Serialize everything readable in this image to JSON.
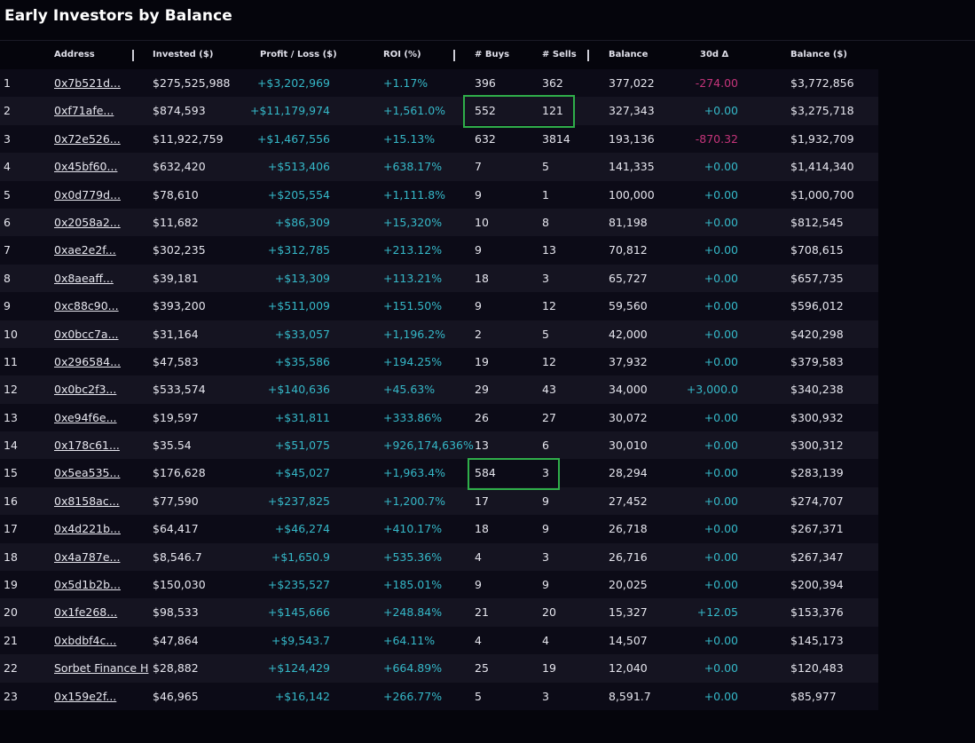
{
  "title": "Early Investors by Balance",
  "columns": {
    "address": "Address",
    "invested": "Invested ($)",
    "profit_loss": "Profit / Loss ($)",
    "roi": "ROI (%)",
    "buys": "# Buys",
    "sells": "# Sells",
    "balance": "Balance",
    "delta30": "30d Δ",
    "balance_usd": "Balance ($)"
  },
  "colors": {
    "positive": "#35b8c8",
    "negative": "#c4347a",
    "highlight_box": "#2fae4a"
  },
  "rows": [
    {
      "idx": "1",
      "address": "0x7b521d...",
      "invested": "$275,525,988",
      "pl": "+$3,202,969",
      "roi": "+1.17%",
      "buys": "396",
      "sells": "362",
      "balance": "377,022",
      "delta30": "-274.00",
      "delta_neg": true,
      "balance_usd": "$3,772,856"
    },
    {
      "idx": "2",
      "address": "0xf71afe...",
      "invested": "$874,593",
      "pl": "+$11,179,974",
      "roi": "+1,561.0%",
      "buys": "552",
      "sells": "121",
      "balance": "327,343",
      "delta30": "+0.00",
      "delta_neg": false,
      "balance_usd": "$3,275,718"
    },
    {
      "idx": "3",
      "address": "0x72e526...",
      "invested": "$11,922,759",
      "pl": "+$1,467,556",
      "roi": "+15.13%",
      "buys": "632",
      "sells": "3814",
      "balance": "193,136",
      "delta30": "-870.32",
      "delta_neg": true,
      "balance_usd": "$1,932,709"
    },
    {
      "idx": "4",
      "address": "0x45bf60...",
      "invested": "$632,420",
      "pl": "+$513,406",
      "roi": "+638.17%",
      "buys": "7",
      "sells": "5",
      "balance": "141,335",
      "delta30": "+0.00",
      "delta_neg": false,
      "balance_usd": "$1,414,340"
    },
    {
      "idx": "5",
      "address": "0x0d779d...",
      "invested": "$78,610",
      "pl": "+$205,554",
      "roi": "+1,111.8%",
      "buys": "9",
      "sells": "1",
      "balance": "100,000",
      "delta30": "+0.00",
      "delta_neg": false,
      "balance_usd": "$1,000,700"
    },
    {
      "idx": "6",
      "address": "0x2058a2...",
      "invested": "$11,682",
      "pl": "+$86,309",
      "roi": "+15,320%",
      "buys": "10",
      "sells": "8",
      "balance": "81,198",
      "delta30": "+0.00",
      "delta_neg": false,
      "balance_usd": "$812,545"
    },
    {
      "idx": "7",
      "address": "0xae2e2f...",
      "invested": "$302,235",
      "pl": "+$312,785",
      "roi": "+213.12%",
      "buys": "9",
      "sells": "13",
      "balance": "70,812",
      "delta30": "+0.00",
      "delta_neg": false,
      "balance_usd": "$708,615"
    },
    {
      "idx": "8",
      "address": "0x8aeaff...",
      "invested": "$39,181",
      "pl": "+$13,309",
      "roi": "+113.21%",
      "buys": "18",
      "sells": "3",
      "balance": "65,727",
      "delta30": "+0.00",
      "delta_neg": false,
      "balance_usd": "$657,735"
    },
    {
      "idx": "9",
      "address": "0xc88c90...",
      "invested": "$393,200",
      "pl": "+$511,009",
      "roi": "+151.50%",
      "buys": "9",
      "sells": "12",
      "balance": "59,560",
      "delta30": "+0.00",
      "delta_neg": false,
      "balance_usd": "$596,012"
    },
    {
      "idx": "10",
      "address": "0x0bcc7a...",
      "invested": "$31,164",
      "pl": "+$33,057",
      "roi": "+1,196.2%",
      "buys": "2",
      "sells": "5",
      "balance": "42,000",
      "delta30": "+0.00",
      "delta_neg": false,
      "balance_usd": "$420,298"
    },
    {
      "idx": "11",
      "address": "0x296584...",
      "invested": "$47,583",
      "pl": "+$35,586",
      "roi": "+194.25%",
      "buys": "19",
      "sells": "12",
      "balance": "37,932",
      "delta30": "+0.00",
      "delta_neg": false,
      "balance_usd": "$379,583"
    },
    {
      "idx": "12",
      "address": "0x0bc2f3...",
      "invested": "$533,574",
      "pl": "+$140,636",
      "roi": "+45.63%",
      "buys": "29",
      "sells": "43",
      "balance": "34,000",
      "delta30": "+3,000.0",
      "delta_neg": false,
      "balance_usd": "$340,238"
    },
    {
      "idx": "13",
      "address": "0xe94f6e...",
      "invested": "$19,597",
      "pl": "+$31,811",
      "roi": "+333.86%",
      "buys": "26",
      "sells": "27",
      "balance": "30,072",
      "delta30": "+0.00",
      "delta_neg": false,
      "balance_usd": "$300,932"
    },
    {
      "idx": "14",
      "address": "0x178c61...",
      "invested": "$35.54",
      "pl": "+$51,075",
      "roi": "+926,174,636%",
      "buys": "13",
      "sells": "6",
      "balance": "30,010",
      "delta30": "+0.00",
      "delta_neg": false,
      "balance_usd": "$300,312"
    },
    {
      "idx": "15",
      "address": "0x5ea535...",
      "invested": "$176,628",
      "pl": "+$45,027",
      "roi": "+1,963.4%",
      "buys": "584",
      "sells": "3",
      "balance": "28,294",
      "delta30": "+0.00",
      "delta_neg": false,
      "balance_usd": "$283,139"
    },
    {
      "idx": "16",
      "address": "0x8158ac...",
      "invested": "$77,590",
      "pl": "+$237,825",
      "roi": "+1,200.7%",
      "buys": "17",
      "sells": "9",
      "balance": "27,452",
      "delta30": "+0.00",
      "delta_neg": false,
      "balance_usd": "$274,707"
    },
    {
      "idx": "17",
      "address": "0x4d221b...",
      "invested": "$64,417",
      "pl": "+$46,274",
      "roi": "+410.17%",
      "buys": "18",
      "sells": "9",
      "balance": "26,718",
      "delta30": "+0.00",
      "delta_neg": false,
      "balance_usd": "$267,371"
    },
    {
      "idx": "18",
      "address": "0x4a787e...",
      "invested": "$8,546.7",
      "pl": "+$1,650.9",
      "roi": "+535.36%",
      "buys": "4",
      "sells": "3",
      "balance": "26,716",
      "delta30": "+0.00",
      "delta_neg": false,
      "balance_usd": "$267,347"
    },
    {
      "idx": "19",
      "address": "0x5d1b2b...",
      "invested": "$150,030",
      "pl": "+$235,527",
      "roi": "+185.01%",
      "buys": "9",
      "sells": "9",
      "balance": "20,025",
      "delta30": "+0.00",
      "delta_neg": false,
      "balance_usd": "$200,394"
    },
    {
      "idx": "20",
      "address": "0x1fe268...",
      "invested": "$98,533",
      "pl": "+$145,666",
      "roi": "+248.84%",
      "buys": "21",
      "sells": "20",
      "balance": "15,327",
      "delta30": "+12.05",
      "delta_neg": false,
      "balance_usd": "$153,376"
    },
    {
      "idx": "21",
      "address": "0xbdbf4c...",
      "invested": "$47,864",
      "pl": "+$9,543.7",
      "roi": "+64.11%",
      "buys": "4",
      "sells": "4",
      "balance": "14,507",
      "delta30": "+0.00",
      "delta_neg": false,
      "balance_usd": "$145,173"
    },
    {
      "idx": "22",
      "address": "Sorbet Finance H",
      "invested": "$28,882",
      "pl": "+$124,429",
      "roi": "+664.89%",
      "buys": "25",
      "sells": "19",
      "balance": "12,040",
      "delta30": "+0.00",
      "delta_neg": false,
      "balance_usd": "$120,483"
    },
    {
      "idx": "23",
      "address": "0x159e2f...",
      "invested": "$46,965",
      "pl": "+$16,142",
      "roi": "+266.77%",
      "buys": "5",
      "sells": "3",
      "balance": "8,591.7",
      "delta30": "+0.00",
      "delta_neg": false,
      "balance_usd": "$85,977"
    }
  ],
  "highlights": [
    {
      "row": 2,
      "columns": [
        "buys",
        "sells"
      ]
    },
    {
      "row": 15,
      "columns": [
        "buys",
        "sells"
      ]
    }
  ]
}
